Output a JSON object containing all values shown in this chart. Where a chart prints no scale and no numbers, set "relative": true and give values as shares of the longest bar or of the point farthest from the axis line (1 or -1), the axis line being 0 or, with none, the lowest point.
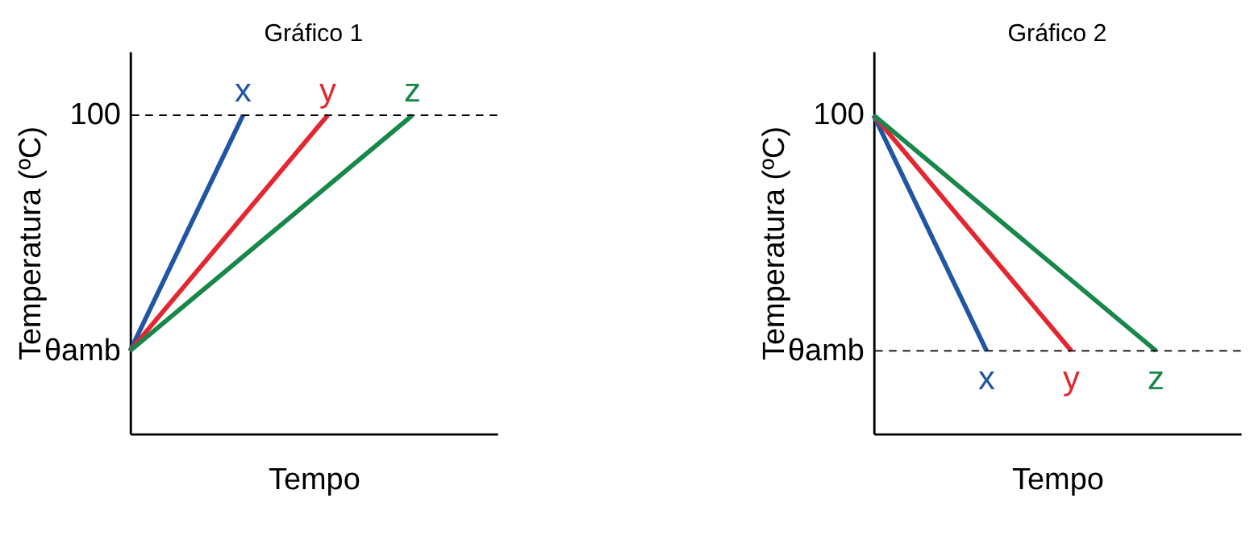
{
  "chart_data": [
    {
      "type": "line",
      "title": "Gráfico 1",
      "xlabel": "Tempo",
      "ylabel": "Temperatura (ºC)",
      "relative": true,
      "categories": [
        null,
        null,
        null,
        null,
        null,
        null,
        null,
        null,
        null,
        null,
        null,
        null,
        null,
        null
      ],
      "series": [
        {
          "name": "x",
          "color": "#1f56a3",
          "values": [
            0.26,
            null,
            null,
            null,
            1,
            null,
            null,
            null,
            null,
            null,
            null,
            null,
            null,
            null
          ]
        },
        {
          "name": "y",
          "color": "#e3262f",
          "values": [
            0.26,
            null,
            null,
            null,
            null,
            null,
            null,
            1,
            null,
            null,
            null,
            null,
            null,
            null
          ]
        },
        {
          "name": "z",
          "color": "#17874a",
          "values": [
            0.26,
            null,
            null,
            null,
            null,
            null,
            null,
            null,
            null,
            null,
            1,
            null,
            null,
            null
          ]
        }
      ],
      "ref_lines": [
        {
          "axis": "y",
          "value": 1,
          "label": "100",
          "color": "#000000",
          "line_style": "dashed"
        }
      ],
      "annotations": [
        "θamb"
      ]
    },
    {
      "type": "line",
      "title": "Gráfico 2",
      "xlabel": "Tempo",
      "ylabel": "Temperatura (ºC)",
      "relative": true,
      "categories": [
        null,
        null,
        null,
        null,
        null,
        null,
        null,
        null,
        null,
        null,
        null,
        null,
        null,
        null
      ],
      "series": [
        {
          "name": "x",
          "color": "#1f56a3",
          "values": [
            1,
            null,
            null,
            null,
            0.26,
            null,
            null,
            null,
            null,
            null,
            null,
            null,
            null,
            null
          ]
        },
        {
          "name": "y",
          "color": "#e3262f",
          "values": [
            1,
            null,
            null,
            null,
            null,
            null,
            null,
            0.26,
            null,
            null,
            null,
            null,
            null,
            null
          ]
        },
        {
          "name": "z",
          "color": "#17874a",
          "values": [
            1,
            null,
            null,
            null,
            null,
            null,
            null,
            null,
            null,
            null,
            0.26,
            null,
            null,
            null
          ]
        }
      ],
      "ref_lines": [
        {
          "axis": "y",
          "value": 0.26,
          "label": "θamb",
          "color": "#000000",
          "line_style": "dashed"
        }
      ],
      "annotations": [
        "100"
      ]
    }
  ]
}
